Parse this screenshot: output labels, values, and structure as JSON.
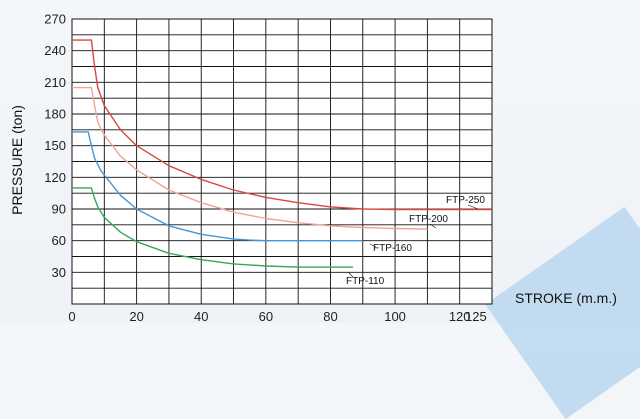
{
  "chart_data": {
    "type": "line",
    "title": "",
    "xlabel": "STROKE  (m.m.)",
    "ylabel": "PRESSURE  (ton)",
    "xlim": [
      0,
      125
    ],
    "ylim": [
      0,
      270
    ],
    "x_ticks": [
      0,
      20,
      40,
      60,
      80,
      100,
      120,
      125
    ],
    "y_ticks": [
      30,
      60,
      90,
      120,
      150,
      180,
      210,
      240,
      270
    ],
    "grid": true,
    "series": [
      {
        "name": "FTP-250",
        "color": "#d9473f",
        "x": [
          0,
          6,
          7,
          8,
          10,
          15,
          20,
          30,
          40,
          50,
          60,
          70,
          80,
          90,
          100,
          110,
          120,
          130
        ],
        "y": [
          250,
          250,
          225,
          205,
          188,
          165,
          150,
          131,
          118,
          108,
          101,
          96,
          92,
          90,
          89.5,
          89.5,
          89.5,
          89.5
        ]
      },
      {
        "name": "FTP-200",
        "color": "#f0a497",
        "x": [
          0,
          6,
          7,
          8,
          10,
          15,
          20,
          30,
          40,
          50,
          60,
          70,
          80,
          90,
          100,
          110
        ],
        "y": [
          205,
          205,
          188,
          172,
          160,
          140,
          127,
          108,
          96,
          87,
          81,
          77,
          74,
          72.5,
          71.5,
          71
        ]
      },
      {
        "name": "FTP-160",
        "color": "#3f98dc",
        "x": [
          0,
          5,
          6,
          7,
          9,
          15,
          20,
          30,
          40,
          50,
          55,
          60,
          70,
          80,
          90
        ],
        "y": [
          163,
          163,
          150,
          138,
          126,
          103,
          90,
          74,
          66,
          61.5,
          60.5,
          60,
          60,
          60,
          60
        ]
      },
      {
        "name": "FTP-110",
        "color": "#3aa655",
        "x": [
          0,
          6,
          7,
          8,
          10,
          15,
          20,
          30,
          40,
          50,
          60,
          70,
          80,
          87
        ],
        "y": [
          110,
          110,
          100,
          92,
          82,
          68,
          59,
          48,
          42,
          38,
          36,
          35,
          35,
          35
        ]
      }
    ]
  }
}
